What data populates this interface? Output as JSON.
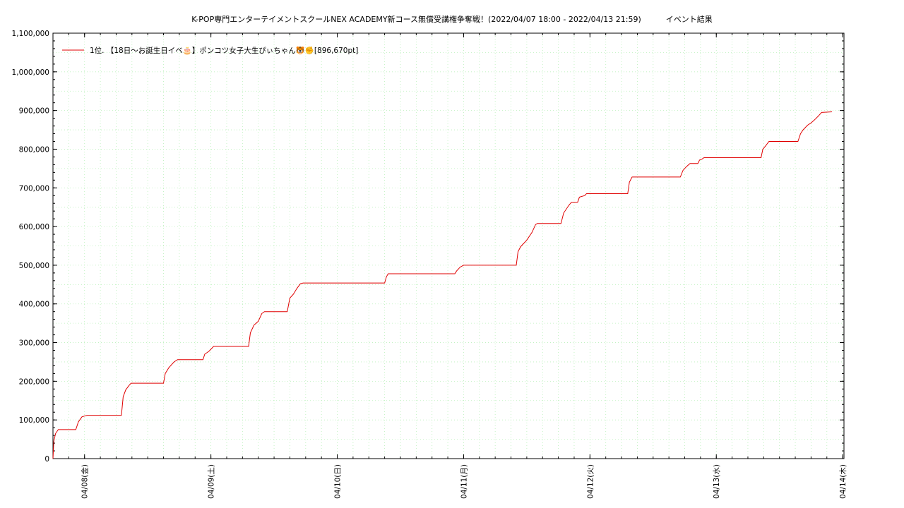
{
  "title": "K-POP専門エンターテイメントスクールNEX ACADEMY新コース無償受講権争奪戦！(2022/04/07 18:00 - 2022/04/13 21:59)          イベント結果",
  "colors": {
    "series": "#e00000",
    "grid": "#b9f0b9",
    "axis": "#000000"
  },
  "chart_data": {
    "type": "line",
    "title": "K-POP専門エンターテイメントスクールNEX ACADEMY新コース無償受講権争奪戦！(2022/04/07 18:00 - 2022/04/13 21:59)　イベント結果",
    "xlabel": "",
    "ylabel": "",
    "x_range": [
      "2022-04-07 18:00",
      "2022-04-14 00:15"
    ],
    "ylim": [
      0,
      1100000
    ],
    "y_ticks": [
      "0",
      "100,000",
      "200,000",
      "300,000",
      "400,000",
      "500,000",
      "600,000",
      "700,000",
      "800,000",
      "900,000",
      "1,000,000",
      "1,100,000"
    ],
    "x_ticks": [
      {
        "time": "2022-04-08 00:00",
        "label": "04/08(金)"
      },
      {
        "time": "2022-04-09 00:00",
        "label": "04/09(土)"
      },
      {
        "time": "2022-04-10 00:00",
        "label": "04/10(日)"
      },
      {
        "time": "2022-04-11 00:00",
        "label": "04/11(月)"
      },
      {
        "time": "2022-04-12 00:00",
        "label": "04/12(火)"
      },
      {
        "time": "2022-04-13 00:00",
        "label": "04/13(水)"
      },
      {
        "time": "2022-04-14 00:00",
        "label": "04/14(木)"
      }
    ],
    "grid": true,
    "legend_position": "top-left",
    "series": [
      {
        "name": "1位. 【18日〜お誕生日イベ🎂】ポンコツ女子大生ぴぃちゃん🐯✊[896,670pt]",
        "points": [
          [
            "2022-04-07 18:00",
            0
          ],
          [
            "2022-04-07 18:10",
            45000
          ],
          [
            "2022-04-07 18:30",
            65000
          ],
          [
            "2022-04-07 19:00",
            75000
          ],
          [
            "2022-04-07 22:20",
            75000
          ],
          [
            "2022-04-07 22:50",
            95000
          ],
          [
            "2022-04-07 23:30",
            108000
          ],
          [
            "2022-04-08 00:00",
            110000
          ],
          [
            "2022-04-08 00:30",
            112000
          ],
          [
            "2022-04-08 07:00",
            112000
          ],
          [
            "2022-04-08 07:20",
            160000
          ],
          [
            "2022-04-08 07:50",
            178000
          ],
          [
            "2022-04-08 08:30",
            190000
          ],
          [
            "2022-04-08 08:50",
            195000
          ],
          [
            "2022-04-08 15:00",
            195000
          ],
          [
            "2022-04-08 15:20",
            220000
          ],
          [
            "2022-04-08 16:00",
            235000
          ],
          [
            "2022-04-08 17:00",
            250000
          ],
          [
            "2022-04-08 17:40",
            256000
          ],
          [
            "2022-04-08 22:30",
            256000
          ],
          [
            "2022-04-08 22:50",
            270000
          ],
          [
            "2022-04-08 23:40",
            278000
          ],
          [
            "2022-04-09 00:30",
            290000
          ],
          [
            "2022-04-09 07:10",
            290000
          ],
          [
            "2022-04-09 07:30",
            325000
          ],
          [
            "2022-04-09 08:10",
            345000
          ],
          [
            "2022-04-09 09:00",
            355000
          ],
          [
            "2022-04-09 09:40",
            375000
          ],
          [
            "2022-04-09 10:10",
            380000
          ],
          [
            "2022-04-09 14:30",
            380000
          ],
          [
            "2022-04-09 15:00",
            415000
          ],
          [
            "2022-04-09 15:40",
            425000
          ],
          [
            "2022-04-09 16:20",
            440000
          ],
          [
            "2022-04-09 17:00",
            452000
          ],
          [
            "2022-04-09 17:30",
            454000
          ],
          [
            "2022-04-10 09:00",
            454000
          ],
          [
            "2022-04-10 09:20",
            470000
          ],
          [
            "2022-04-10 09:40",
            478000
          ],
          [
            "2022-04-10 22:20",
            478000
          ],
          [
            "2022-04-10 22:40",
            485000
          ],
          [
            "2022-04-10 23:20",
            495000
          ],
          [
            "2022-04-11 00:00",
            500000
          ],
          [
            "2022-04-11 10:00",
            500000
          ],
          [
            "2022-04-11 10:20",
            535000
          ],
          [
            "2022-04-11 10:50",
            548000
          ],
          [
            "2022-04-11 12:00",
            565000
          ],
          [
            "2022-04-11 13:00",
            585000
          ],
          [
            "2022-04-11 13:40",
            605000
          ],
          [
            "2022-04-11 14:00",
            608000
          ],
          [
            "2022-04-11 18:30",
            608000
          ],
          [
            "2022-04-11 19:00",
            635000
          ],
          [
            "2022-04-11 20:00",
            655000
          ],
          [
            "2022-04-11 20:30",
            663000
          ],
          [
            "2022-04-11 21:40",
            663000
          ],
          [
            "2022-04-11 22:00",
            676000
          ],
          [
            "2022-04-11 23:00",
            680000
          ],
          [
            "2022-04-11 23:20",
            685000
          ],
          [
            "2022-04-12 07:10",
            685000
          ],
          [
            "2022-04-12 07:30",
            715000
          ],
          [
            "2022-04-12 08:00",
            728000
          ],
          [
            "2022-04-12 17:10",
            728000
          ],
          [
            "2022-04-12 17:40",
            745000
          ],
          [
            "2022-04-12 18:20",
            755000
          ],
          [
            "2022-04-12 19:00",
            763000
          ],
          [
            "2022-04-12 20:30",
            763000
          ],
          [
            "2022-04-12 20:50",
            772000
          ],
          [
            "2022-04-12 21:20",
            775000
          ],
          [
            "2022-04-12 21:40",
            778000
          ],
          [
            "2022-04-13 08:30",
            778000
          ],
          [
            "2022-04-13 08:50",
            800000
          ],
          [
            "2022-04-13 09:20",
            808000
          ],
          [
            "2022-04-13 10:00",
            820000
          ],
          [
            "2022-04-13 15:30",
            820000
          ],
          [
            "2022-04-13 16:00",
            840000
          ],
          [
            "2022-04-13 16:30",
            850000
          ],
          [
            "2022-04-13 17:20",
            862000
          ],
          [
            "2022-04-13 18:00",
            868000
          ],
          [
            "2022-04-13 18:40",
            876000
          ],
          [
            "2022-04-13 19:20",
            885000
          ],
          [
            "2022-04-13 20:00",
            895000
          ],
          [
            "2022-04-13 21:59",
            896670
          ]
        ]
      }
    ]
  }
}
